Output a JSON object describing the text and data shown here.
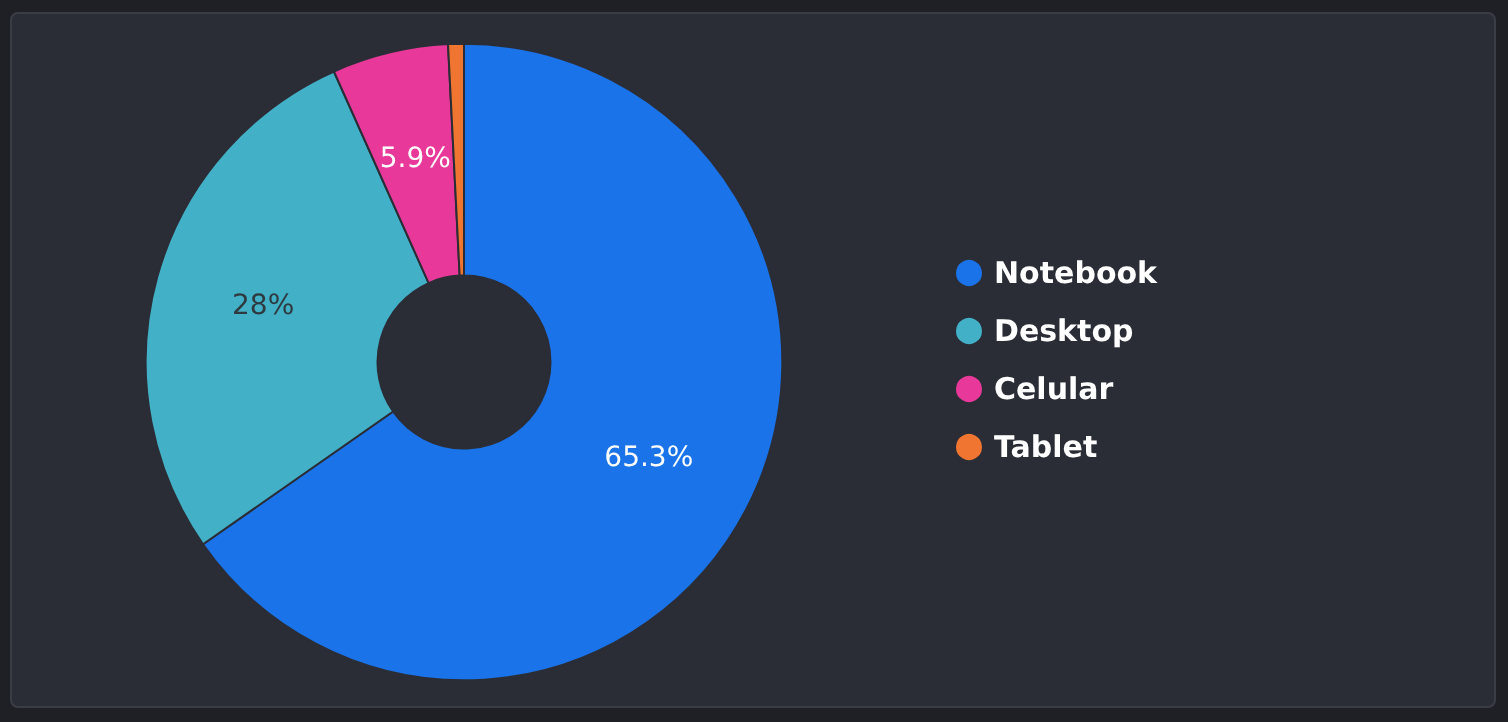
{
  "chart_data": {
    "type": "donut",
    "categories": [
      "Notebook",
      "Desktop",
      "Celular",
      "Tablet"
    ],
    "values": [
      65.3,
      28,
      5.9,
      0.8
    ],
    "colors": [
      "#1a73e8",
      "#42b0c6",
      "#e8399b",
      "#f07530"
    ],
    "value_labels": [
      "65.3%",
      "28%",
      "5.9%",
      null
    ],
    "legend": "right"
  }
}
